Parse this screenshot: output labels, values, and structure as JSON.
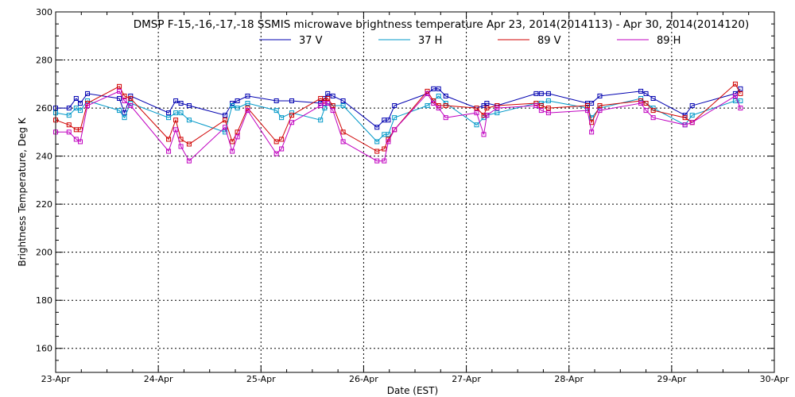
{
  "chart_data": {
    "type": "line",
    "title": "DMSP F-15,-16,-17,-18 SSMIS microwave brightness temperature Apr 23, 2014(2014113) - Apr 30, 2014(2014120)",
    "xlabel": "Date (EST)",
    "ylabel": "Brightness Temperature, Deg K",
    "xlim": [
      0,
      7
    ],
    "ylim": [
      150,
      300
    ],
    "grid": true,
    "x_ticks": [
      0,
      1,
      2,
      3,
      4,
      5,
      6,
      7
    ],
    "x_tick_labels": [
      "23-Apr",
      "24-Apr",
      "25-Apr",
      "26-Apr",
      "27-Apr",
      "28-Apr",
      "29-Apr",
      "30-Apr"
    ],
    "y_ticks": [
      160,
      180,
      200,
      220,
      240,
      260,
      280,
      300
    ],
    "y_tick_labels": [
      "160",
      "180",
      "200",
      "220",
      "240",
      "260",
      "280",
      "300"
    ],
    "legend": "top",
    "series": [
      {
        "name": "37 V",
        "color": "#0000b0",
        "points": [
          [
            0.0,
            260
          ],
          [
            0.13,
            260
          ],
          [
            0.2,
            264
          ],
          [
            0.24,
            262
          ],
          [
            0.31,
            266
          ],
          [
            0.62,
            264
          ],
          [
            0.67,
            258
          ],
          [
            0.73,
            265
          ],
          [
            1.1,
            258
          ],
          [
            1.17,
            263
          ],
          [
            1.22,
            262
          ],
          [
            1.3,
            261
          ],
          [
            1.65,
            257
          ],
          [
            1.72,
            262
          ],
          [
            1.77,
            263
          ],
          [
            1.87,
            265
          ],
          [
            2.15,
            263
          ],
          [
            2.3,
            263
          ],
          [
            2.58,
            262
          ],
          [
            2.62,
            264
          ],
          [
            2.65,
            266
          ],
          [
            2.7,
            265
          ],
          [
            2.8,
            263
          ],
          [
            3.13,
            252
          ],
          [
            3.2,
            255
          ],
          [
            3.24,
            255
          ],
          [
            3.3,
            261
          ],
          [
            3.62,
            266
          ],
          [
            3.68,
            268
          ],
          [
            3.73,
            268
          ],
          [
            3.8,
            265
          ],
          [
            4.1,
            260
          ],
          [
            4.17,
            261
          ],
          [
            4.2,
            262
          ],
          [
            4.3,
            261
          ],
          [
            4.68,
            266
          ],
          [
            4.73,
            266
          ],
          [
            4.8,
            266
          ],
          [
            5.18,
            262
          ],
          [
            5.22,
            262
          ],
          [
            5.3,
            265
          ],
          [
            5.7,
            267
          ],
          [
            5.75,
            266
          ],
          [
            5.82,
            264
          ],
          [
            6.13,
            257
          ],
          [
            6.2,
            261
          ],
          [
            6.62,
            266
          ],
          [
            6.67,
            268
          ]
        ]
      },
      {
        "name": "37 H",
        "color": "#0098c8",
        "points": [
          [
            0.0,
            258
          ],
          [
            0.13,
            257
          ],
          [
            0.2,
            260
          ],
          [
            0.24,
            259
          ],
          [
            0.31,
            263
          ],
          [
            0.62,
            259
          ],
          [
            0.67,
            256
          ],
          [
            0.73,
            262
          ],
          [
            1.1,
            256
          ],
          [
            1.17,
            258
          ],
          [
            1.22,
            258
          ],
          [
            1.3,
            255
          ],
          [
            1.65,
            250
          ],
          [
            1.72,
            261
          ],
          [
            1.77,
            260
          ],
          [
            1.87,
            262
          ],
          [
            2.15,
            259
          ],
          [
            2.2,
            256
          ],
          [
            2.3,
            258
          ],
          [
            2.58,
            255
          ],
          [
            2.62,
            260
          ],
          [
            2.65,
            262
          ],
          [
            2.7,
            261
          ],
          [
            2.8,
            261
          ],
          [
            3.13,
            246
          ],
          [
            3.2,
            249
          ],
          [
            3.24,
            249
          ],
          [
            3.3,
            256
          ],
          [
            3.62,
            261
          ],
          [
            3.68,
            263
          ],
          [
            3.73,
            265
          ],
          [
            3.8,
            262
          ],
          [
            4.1,
            253
          ],
          [
            4.17,
            256
          ],
          [
            4.2,
            257
          ],
          [
            4.3,
            258
          ],
          [
            4.68,
            262
          ],
          [
            4.73,
            262
          ],
          [
            4.8,
            263
          ],
          [
            5.18,
            260
          ],
          [
            5.22,
            256
          ],
          [
            5.3,
            260
          ],
          [
            5.7,
            264
          ],
          [
            5.75,
            262
          ],
          [
            5.82,
            260
          ],
          [
            6.13,
            253
          ],
          [
            6.2,
            257
          ],
          [
            6.62,
            263
          ],
          [
            6.67,
            263
          ]
        ]
      },
      {
        "name": "89 V",
        "color": "#d00000",
        "points": [
          [
            0.0,
            255
          ],
          [
            0.13,
            253
          ],
          [
            0.2,
            251
          ],
          [
            0.24,
            251
          ],
          [
            0.31,
            262
          ],
          [
            0.62,
            269
          ],
          [
            0.67,
            265
          ],
          [
            0.73,
            264
          ],
          [
            1.1,
            247
          ],
          [
            1.17,
            255
          ],
          [
            1.22,
            247
          ],
          [
            1.3,
            245
          ],
          [
            1.65,
            255
          ],
          [
            1.72,
            246
          ],
          [
            1.77,
            250
          ],
          [
            1.87,
            260
          ],
          [
            2.15,
            246
          ],
          [
            2.2,
            247
          ],
          [
            2.3,
            257
          ],
          [
            2.58,
            264
          ],
          [
            2.62,
            263
          ],
          [
            2.65,
            264
          ],
          [
            2.7,
            261
          ],
          [
            2.8,
            250
          ],
          [
            3.13,
            242
          ],
          [
            3.2,
            243
          ],
          [
            3.24,
            247
          ],
          [
            3.3,
            251
          ],
          [
            3.62,
            267
          ],
          [
            3.68,
            263
          ],
          [
            3.73,
            261
          ],
          [
            3.8,
            261
          ],
          [
            4.1,
            260
          ],
          [
            4.17,
            257
          ],
          [
            4.2,
            260
          ],
          [
            4.3,
            261
          ],
          [
            4.68,
            262
          ],
          [
            4.73,
            261
          ],
          [
            4.8,
            260
          ],
          [
            5.18,
            261
          ],
          [
            5.22,
            254
          ],
          [
            5.3,
            261
          ],
          [
            5.7,
            263
          ],
          [
            5.75,
            262
          ],
          [
            5.82,
            259
          ],
          [
            6.13,
            256
          ],
          [
            6.2,
            254
          ],
          [
            6.62,
            270
          ],
          [
            6.67,
            266
          ]
        ]
      },
      {
        "name": "89 H",
        "color": "#c000c0",
        "points": [
          [
            0.0,
            250
          ],
          [
            0.13,
            250
          ],
          [
            0.2,
            247
          ],
          [
            0.24,
            246
          ],
          [
            0.31,
            261
          ],
          [
            0.62,
            267
          ],
          [
            0.67,
            263
          ],
          [
            0.73,
            261
          ],
          [
            1.1,
            242
          ],
          [
            1.17,
            251
          ],
          [
            1.22,
            244
          ],
          [
            1.3,
            238
          ],
          [
            1.65,
            252
          ],
          [
            1.72,
            242
          ],
          [
            1.77,
            248
          ],
          [
            1.87,
            259
          ],
          [
            2.15,
            241
          ],
          [
            2.2,
            243
          ],
          [
            2.3,
            254
          ],
          [
            2.58,
            261
          ],
          [
            2.62,
            262
          ],
          [
            2.65,
            262
          ],
          [
            2.7,
            259
          ],
          [
            2.8,
            246
          ],
          [
            3.13,
            238
          ],
          [
            3.2,
            238
          ],
          [
            3.24,
            246
          ],
          [
            3.3,
            251
          ],
          [
            3.62,
            266
          ],
          [
            3.68,
            262
          ],
          [
            3.73,
            260
          ],
          [
            3.8,
            256
          ],
          [
            4.1,
            258
          ],
          [
            4.17,
            249
          ],
          [
            4.2,
            257
          ],
          [
            4.3,
            260
          ],
          [
            4.68,
            261
          ],
          [
            4.73,
            259
          ],
          [
            4.8,
            258
          ],
          [
            5.18,
            259
          ],
          [
            5.22,
            250
          ],
          [
            5.3,
            259
          ],
          [
            5.7,
            262
          ],
          [
            5.75,
            259
          ],
          [
            5.82,
            256
          ],
          [
            6.13,
            253
          ],
          [
            6.2,
            254
          ],
          [
            6.62,
            265
          ],
          [
            6.67,
            260
          ]
        ]
      }
    ]
  }
}
